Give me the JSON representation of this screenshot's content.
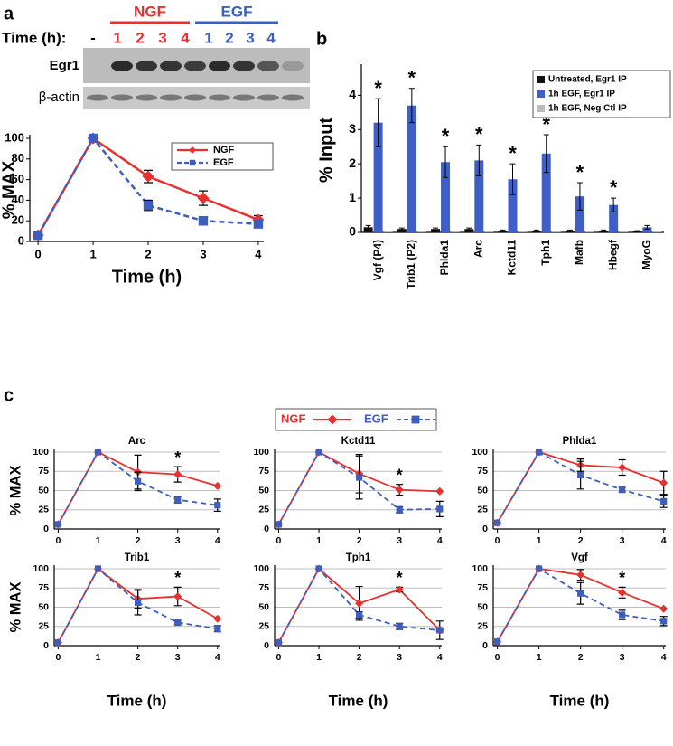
{
  "figure": {
    "panel_labels": [
      "a",
      "b",
      "c"
    ],
    "blot": {
      "groups": [
        "NGF",
        "EGF"
      ],
      "time_label": "Time (h):",
      "lanes": [
        "-",
        "1",
        "2",
        "3",
        "4",
        "1",
        "2",
        "3",
        "4"
      ],
      "rows": [
        "Egr1",
        "β-actin"
      ]
    }
  },
  "chart_data": [
    {
      "type": "line",
      "xlabel": "Time (h)",
      "ylabel": "% MAX",
      "x": [
        0,
        1,
        2,
        3,
        4
      ],
      "xlim": [
        -0.15,
        4.1
      ],
      "xticks": [
        0,
        1,
        2,
        3,
        4
      ],
      "ylim": [
        0,
        100
      ],
      "yticks": [
        0,
        20,
        40,
        60,
        80,
        100
      ],
      "grid": false,
      "legend": "upper right",
      "series": [
        {
          "name": "NGF",
          "color": "#e8312f",
          "line": "solid",
          "marker": "diamond",
          "values": [
            6,
            100,
            63,
            42,
            21
          ],
          "errors": [
            null,
            null,
            6,
            7,
            4
          ]
        },
        {
          "name": "EGF",
          "color": "#3c5fbf",
          "line": "dashed",
          "marker": "square",
          "values": [
            6,
            100,
            35,
            20,
            17
          ],
          "errors": [
            null,
            null,
            5,
            4,
            null
          ]
        }
      ]
    },
    {
      "type": "bar",
      "ylabel": "% Input",
      "categories": [
        "Vgf (P4)",
        "Trib1 (P2)",
        "Phlda1",
        "Arc",
        "Kctd11",
        "Tph1",
        "Mafb",
        "Hbegf",
        "MyoG"
      ],
      "ylim": [
        0,
        4.8
      ],
      "yticks": [
        0,
        1,
        2,
        3,
        4
      ],
      "legend": "upper right",
      "significance": [
        "*",
        "*",
        "*",
        "*",
        "*",
        "*",
        "*",
        "*",
        null
      ],
      "series": [
        {
          "name": "Untreated, Egr1 IP",
          "color": "#111111",
          "values": [
            0.15,
            0.1,
            0.1,
            0.1,
            0.05,
            0.05,
            0.05,
            0.05,
            0.03
          ],
          "errors": [
            0.05,
            0.03,
            0.03,
            0.03,
            0.02,
            0.02,
            0.02,
            0.02,
            0.02
          ]
        },
        {
          "name": "1h EGF, Egr1 IP",
          "color": "#3f5fc8",
          "values": [
            3.2,
            3.7,
            2.05,
            2.1,
            1.55,
            2.3,
            1.05,
            0.8,
            0.15
          ],
          "errors": [
            0.7,
            0.5,
            0.45,
            0.45,
            0.45,
            0.55,
            0.4,
            0.2,
            0.05
          ]
        },
        {
          "name": "1h EGF, Neg Ctl IP",
          "color": "#bbbbbb",
          "values": [
            0.05,
            0.04,
            0.04,
            0.04,
            0.03,
            0.03,
            0.04,
            0.03,
            0.02
          ]
        }
      ]
    },
    {
      "type": "line",
      "title": "Arc",
      "ylabel": "% MAX",
      "x": [
        0,
        1,
        2,
        3,
        4
      ],
      "xlim": [
        -0.1,
        4.05
      ],
      "xticks": [
        0,
        1,
        2,
        3,
        4
      ],
      "ylim": [
        0,
        100
      ],
      "yticks": [
        0,
        25,
        50,
        75,
        100
      ],
      "grid": true,
      "legend": "above",
      "significance": [
        null,
        null,
        null,
        "*",
        null
      ],
      "series": [
        {
          "name": "NGF",
          "color": "#e8312f",
          "line": "solid",
          "marker": "diamond",
          "values": [
            6,
            100,
            74,
            71,
            56
          ],
          "errors": [
            null,
            null,
            22,
            10,
            null
          ]
        },
        {
          "name": "EGF",
          "color": "#3c5fbf",
          "line": "dashed",
          "marker": "square",
          "values": [
            6,
            100,
            62,
            38,
            31
          ],
          "errors": [
            null,
            null,
            12,
            4,
            8
          ]
        }
      ]
    },
    {
      "type": "line",
      "title": "Kctd11",
      "x": [
        0,
        1,
        2,
        3,
        4
      ],
      "xlim": [
        -0.1,
        4.05
      ],
      "xticks": [
        0,
        1,
        2,
        3,
        4
      ],
      "ylim": [
        0,
        100
      ],
      "yticks": [
        0,
        25,
        50,
        75,
        100
      ],
      "grid": true,
      "significance": [
        null,
        null,
        null,
        "*",
        null
      ],
      "series": [
        {
          "name": "NGF",
          "color": "#e8312f",
          "line": "solid",
          "marker": "diamond",
          "values": [
            6,
            100,
            72,
            51,
            49
          ],
          "errors": [
            null,
            null,
            25,
            7,
            null
          ]
        },
        {
          "name": "EGF",
          "color": "#3c5fbf",
          "line": "dashed",
          "marker": "square",
          "values": [
            6,
            100,
            67,
            25,
            26
          ],
          "errors": [
            null,
            null,
            28,
            4,
            10
          ]
        }
      ]
    },
    {
      "type": "line",
      "title": "Phlda1",
      "x": [
        0,
        1,
        2,
        3,
        4
      ],
      "xlim": [
        -0.1,
        4.05
      ],
      "xticks": [
        0,
        1,
        2,
        3,
        4
      ],
      "ylim": [
        0,
        100
      ],
      "yticks": [
        0,
        25,
        50,
        75,
        100
      ],
      "grid": true,
      "series": [
        {
          "name": "NGF",
          "color": "#e8312f",
          "line": "solid",
          "marker": "diamond",
          "values": [
            8,
            100,
            83,
            80,
            60
          ],
          "errors": [
            null,
            null,
            8,
            10,
            15
          ]
        },
        {
          "name": "EGF",
          "color": "#3c5fbf",
          "line": "dashed",
          "marker": "square",
          "values": [
            8,
            100,
            70,
            51,
            36
          ],
          "errors": [
            null,
            null,
            18,
            3,
            8
          ]
        }
      ]
    },
    {
      "type": "line",
      "title": "Trib1",
      "xlabel": "Time (h)",
      "ylabel": "% MAX",
      "x": [
        0,
        1,
        2,
        3,
        4
      ],
      "xlim": [
        -0.1,
        4.05
      ],
      "xticks": [
        0,
        1,
        2,
        3,
        4
      ],
      "ylim": [
        0,
        100
      ],
      "yticks": [
        0,
        25,
        50,
        75,
        100
      ],
      "grid": true,
      "significance": [
        null,
        null,
        null,
        "*",
        null
      ],
      "series": [
        {
          "name": "NGF",
          "color": "#e8312f",
          "line": "solid",
          "marker": "diamond",
          "values": [
            4,
            100,
            61,
            64,
            35
          ],
          "errors": [
            null,
            null,
            12,
            12,
            null
          ]
        },
        {
          "name": "EGF",
          "color": "#3c5fbf",
          "line": "dashed",
          "marker": "square",
          "values": [
            4,
            100,
            56,
            30,
            22
          ],
          "errors": [
            null,
            null,
            16,
            3,
            4
          ]
        }
      ]
    },
    {
      "type": "line",
      "title": "Tph1",
      "xlabel": "Time (h)",
      "x": [
        0,
        1,
        2,
        3,
        4
      ],
      "xlim": [
        -0.1,
        4.05
      ],
      "xticks": [
        0,
        1,
        2,
        3,
        4
      ],
      "ylim": [
        0,
        100
      ],
      "yticks": [
        0,
        25,
        50,
        75,
        100
      ],
      "grid": true,
      "significance": [
        null,
        null,
        null,
        "*",
        null
      ],
      "series": [
        {
          "name": "NGF",
          "color": "#e8312f",
          "line": "solid",
          "marker": "diamond",
          "values": [
            4,
            100,
            55,
            73,
            20
          ],
          "errors": [
            null,
            null,
            22,
            3,
            12
          ]
        },
        {
          "name": "EGF",
          "color": "#3c5fbf",
          "line": "dashed",
          "marker": "square",
          "values": [
            4,
            100,
            40,
            25,
            20
          ],
          "errors": [
            null,
            null,
            4,
            4,
            2
          ]
        }
      ]
    },
    {
      "type": "line",
      "title": "Vgf",
      "xlabel": "Time (h)",
      "x": [
        0,
        1,
        2,
        3,
        4
      ],
      "xlim": [
        -0.1,
        4.05
      ],
      "xticks": [
        0,
        1,
        2,
        3,
        4
      ],
      "ylim": [
        0,
        100
      ],
      "yticks": [
        0,
        25,
        50,
        75,
        100
      ],
      "grid": true,
      "significance": [
        null,
        null,
        null,
        "*",
        null
      ],
      "series": [
        {
          "name": "NGF",
          "color": "#e8312f",
          "line": "solid",
          "marker": "diamond",
          "values": [
            5,
            100,
            92,
            69,
            48
          ],
          "errors": [
            null,
            null,
            7,
            7,
            null
          ]
        },
        {
          "name": "EGF",
          "color": "#3c5fbf",
          "line": "dashed",
          "marker": "square",
          "values": [
            5,
            100,
            68,
            40,
            32
          ],
          "errors": [
            null,
            null,
            14,
            6,
            6
          ]
        }
      ]
    }
  ]
}
